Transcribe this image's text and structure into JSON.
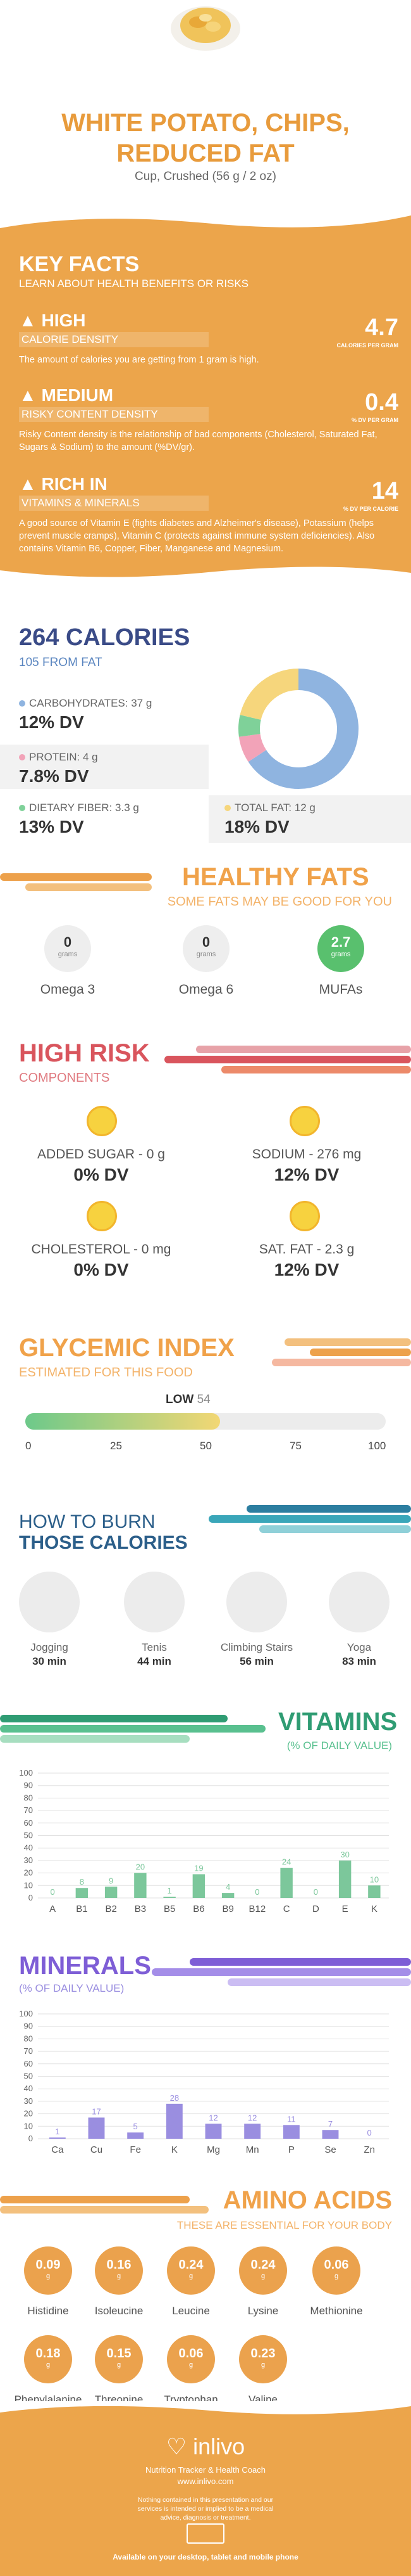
{
  "header": {
    "title_line1": "WHITE POTATO, CHIPS,",
    "title_line2": "REDUCED FAT",
    "serving": "Cup, Crushed (56 g / 2 oz)"
  },
  "key_facts": {
    "title": "KEY FACTS",
    "subtitle": "LEARN ABOUT HEALTH BENEFITS OR RISKS",
    "facts": [
      {
        "level": "HIGH",
        "category": "CALORIE DENSITY",
        "value": "4.7",
        "unit": "CALORIES PER GRAM",
        "description": "The amount of calories you are getting from 1 gram is high."
      },
      {
        "level": "MEDIUM",
        "category": "RISKY CONTENT DENSITY",
        "value": "0.4",
        "unit": "% DV PER GRAM",
        "description": "Risky Content density is the relationship of bad components (Cholesterol, Saturated Fat, Sugars & Sodium) to the amount (%DV/gr)."
      },
      {
        "level": "RICH IN",
        "category": "VITAMINS & MINERALS",
        "value": "14",
        "unit": "% DV PER CALORIE",
        "description": "A good source of Vitamin E (fights diabetes and Alzheimer's disease), Potassium (helps prevent muscle cramps), Vitamin C (protects against immune system deficiencies). Also contains Vitamin B6, Copper, Fiber, Manganese and Magnesium."
      }
    ]
  },
  "calories": {
    "title": "264 CALORIES",
    "from_fat": "105 FROM FAT",
    "carbs_label": "CARBOHYDRATES: 37 g",
    "carbs_dv": "12% DV",
    "protein_label": "PROTEIN: 4 g",
    "protein_dv": "7.8% DV",
    "fiber_label": "DIETARY FIBER: 3.3 g",
    "fiber_dv": "13% DV",
    "fat_label": "TOTAL FAT: 12 g",
    "fat_dv": "18% DV",
    "donut": [
      {
        "name": "carbohydrates",
        "grams": 37,
        "color": "#8fb4e0"
      },
      {
        "name": "protein",
        "grams": 4,
        "color": "#f2a3b8"
      },
      {
        "name": "dietary fiber",
        "grams": 3.3,
        "color": "#7fd199"
      },
      {
        "name": "total fat",
        "grams": 12,
        "color": "#f6d67c"
      }
    ]
  },
  "healthy_fats": {
    "title": "HEALTHY FATS",
    "subtitle": "SOME FATS MAY BE GOOD FOR YOU",
    "items": [
      {
        "value": "0",
        "unit": "grams",
        "label": "Omega 3"
      },
      {
        "value": "0",
        "unit": "grams",
        "label": "Omega 6"
      },
      {
        "value": "2.7",
        "unit": "grams",
        "label": "MUFAs"
      }
    ]
  },
  "high_risk": {
    "title": "HIGH RISK",
    "subtitle": "COMPONENTS",
    "items": [
      {
        "label": "ADDED SUGAR - 0 g",
        "dv": "0% DV"
      },
      {
        "label": "SODIUM - 276 mg",
        "dv": "12% DV"
      },
      {
        "label": "CHOLESTEROL - 0 mg",
        "dv": "0% DV"
      },
      {
        "label": "SAT. FAT - 2.3 g",
        "dv": "12% DV"
      }
    ]
  },
  "glycemic": {
    "title": "GLYCEMIC INDEX",
    "subtitle": "ESTIMATED FOR THIS FOOD",
    "level": "LOW",
    "value": "54",
    "value_num": 54,
    "ticks": [
      "0",
      "25",
      "50",
      "75",
      "100"
    ]
  },
  "burn": {
    "title1": "HOW TO BURN",
    "title2": "THOSE CALORIES",
    "items": [
      {
        "label": "Jogging",
        "time": "30 min"
      },
      {
        "label": "Tenis",
        "time": "44 min"
      },
      {
        "label": "Climbing Stairs",
        "time": "56 min"
      },
      {
        "label": "Yoga",
        "time": "83 min"
      }
    ]
  },
  "vitamins": {
    "title": "VITAMINS",
    "subtitle": "(% OF DAILY VALUE)"
  },
  "minerals": {
    "title": "MINERALS",
    "subtitle": "(% OF DAILY VALUE)"
  },
  "chart_data": [
    {
      "type": "bar",
      "categories": [
        "A",
        "B1",
        "B2",
        "B3",
        "B5",
        "B6",
        "B9",
        "B12",
        "C",
        "D",
        "E",
        "K"
      ],
      "values": [
        0,
        8,
        9,
        20,
        1,
        19,
        4,
        0,
        24,
        0,
        30,
        10
      ],
      "value_labels": [
        "0",
        "8",
        "9",
        "20",
        "1",
        "19",
        "4",
        "0",
        "24",
        "0",
        "30",
        "10"
      ],
      "ylim": [
        0,
        100
      ],
      "yticks": [
        "0",
        "10",
        "20",
        "30",
        "40",
        "50",
        "60",
        "70",
        "80",
        "90",
        "100"
      ],
      "color": "#7cc79b",
      "grid": true
    },
    {
      "type": "bar",
      "categories": [
        "Ca",
        "Cu",
        "Fe",
        "K",
        "Mg",
        "Mn",
        "P",
        "Se",
        "Zn"
      ],
      "values": [
        1,
        17,
        5,
        28,
        12,
        12,
        11,
        7,
        0
      ],
      "value_labels": [
        "1",
        "17",
        "5",
        "28",
        "12",
        "12",
        "11",
        "7",
        "0"
      ],
      "ylim": [
        0,
        100
      ],
      "yticks": [
        "0",
        "10",
        "20",
        "30",
        "40",
        "50",
        "60",
        "70",
        "80",
        "90",
        "100"
      ],
      "color": "#9a8ee0",
      "grid": true
    }
  ],
  "amino": {
    "title": "AMINO ACIDS",
    "subtitle": "THESE ARE ESSENTIAL FOR YOUR BODY",
    "items": [
      {
        "value": "0.09",
        "unit": "g",
        "label": "Histidine"
      },
      {
        "value": "0.16",
        "unit": "g",
        "label": "Isoleucine"
      },
      {
        "value": "0.24",
        "unit": "g",
        "label": "Leucine"
      },
      {
        "value": "0.24",
        "unit": "g",
        "label": "Lysine"
      },
      {
        "value": "0.06",
        "unit": "g",
        "label": "Methionine"
      },
      {
        "value": "0.18",
        "unit": "g",
        "label": "Phenylalanine"
      },
      {
        "value": "0.15",
        "unit": "g",
        "label": "Threonine"
      },
      {
        "value": "0.06",
        "unit": "g",
        "label": "Tryptophan"
      },
      {
        "value": "0.23",
        "unit": "g",
        "label": "Valine"
      }
    ]
  },
  "footer": {
    "brand": "inlivo",
    "tagline": "Nutrition Tracker & Health Coach",
    "url": "www.inlivo.com",
    "disclaimer": "Nothing contained in this presentation and our services is intended or implied to be a medical advice, diagnosis or treatment.",
    "availability": "Available on your desktop, tablet and mobile phone"
  }
}
